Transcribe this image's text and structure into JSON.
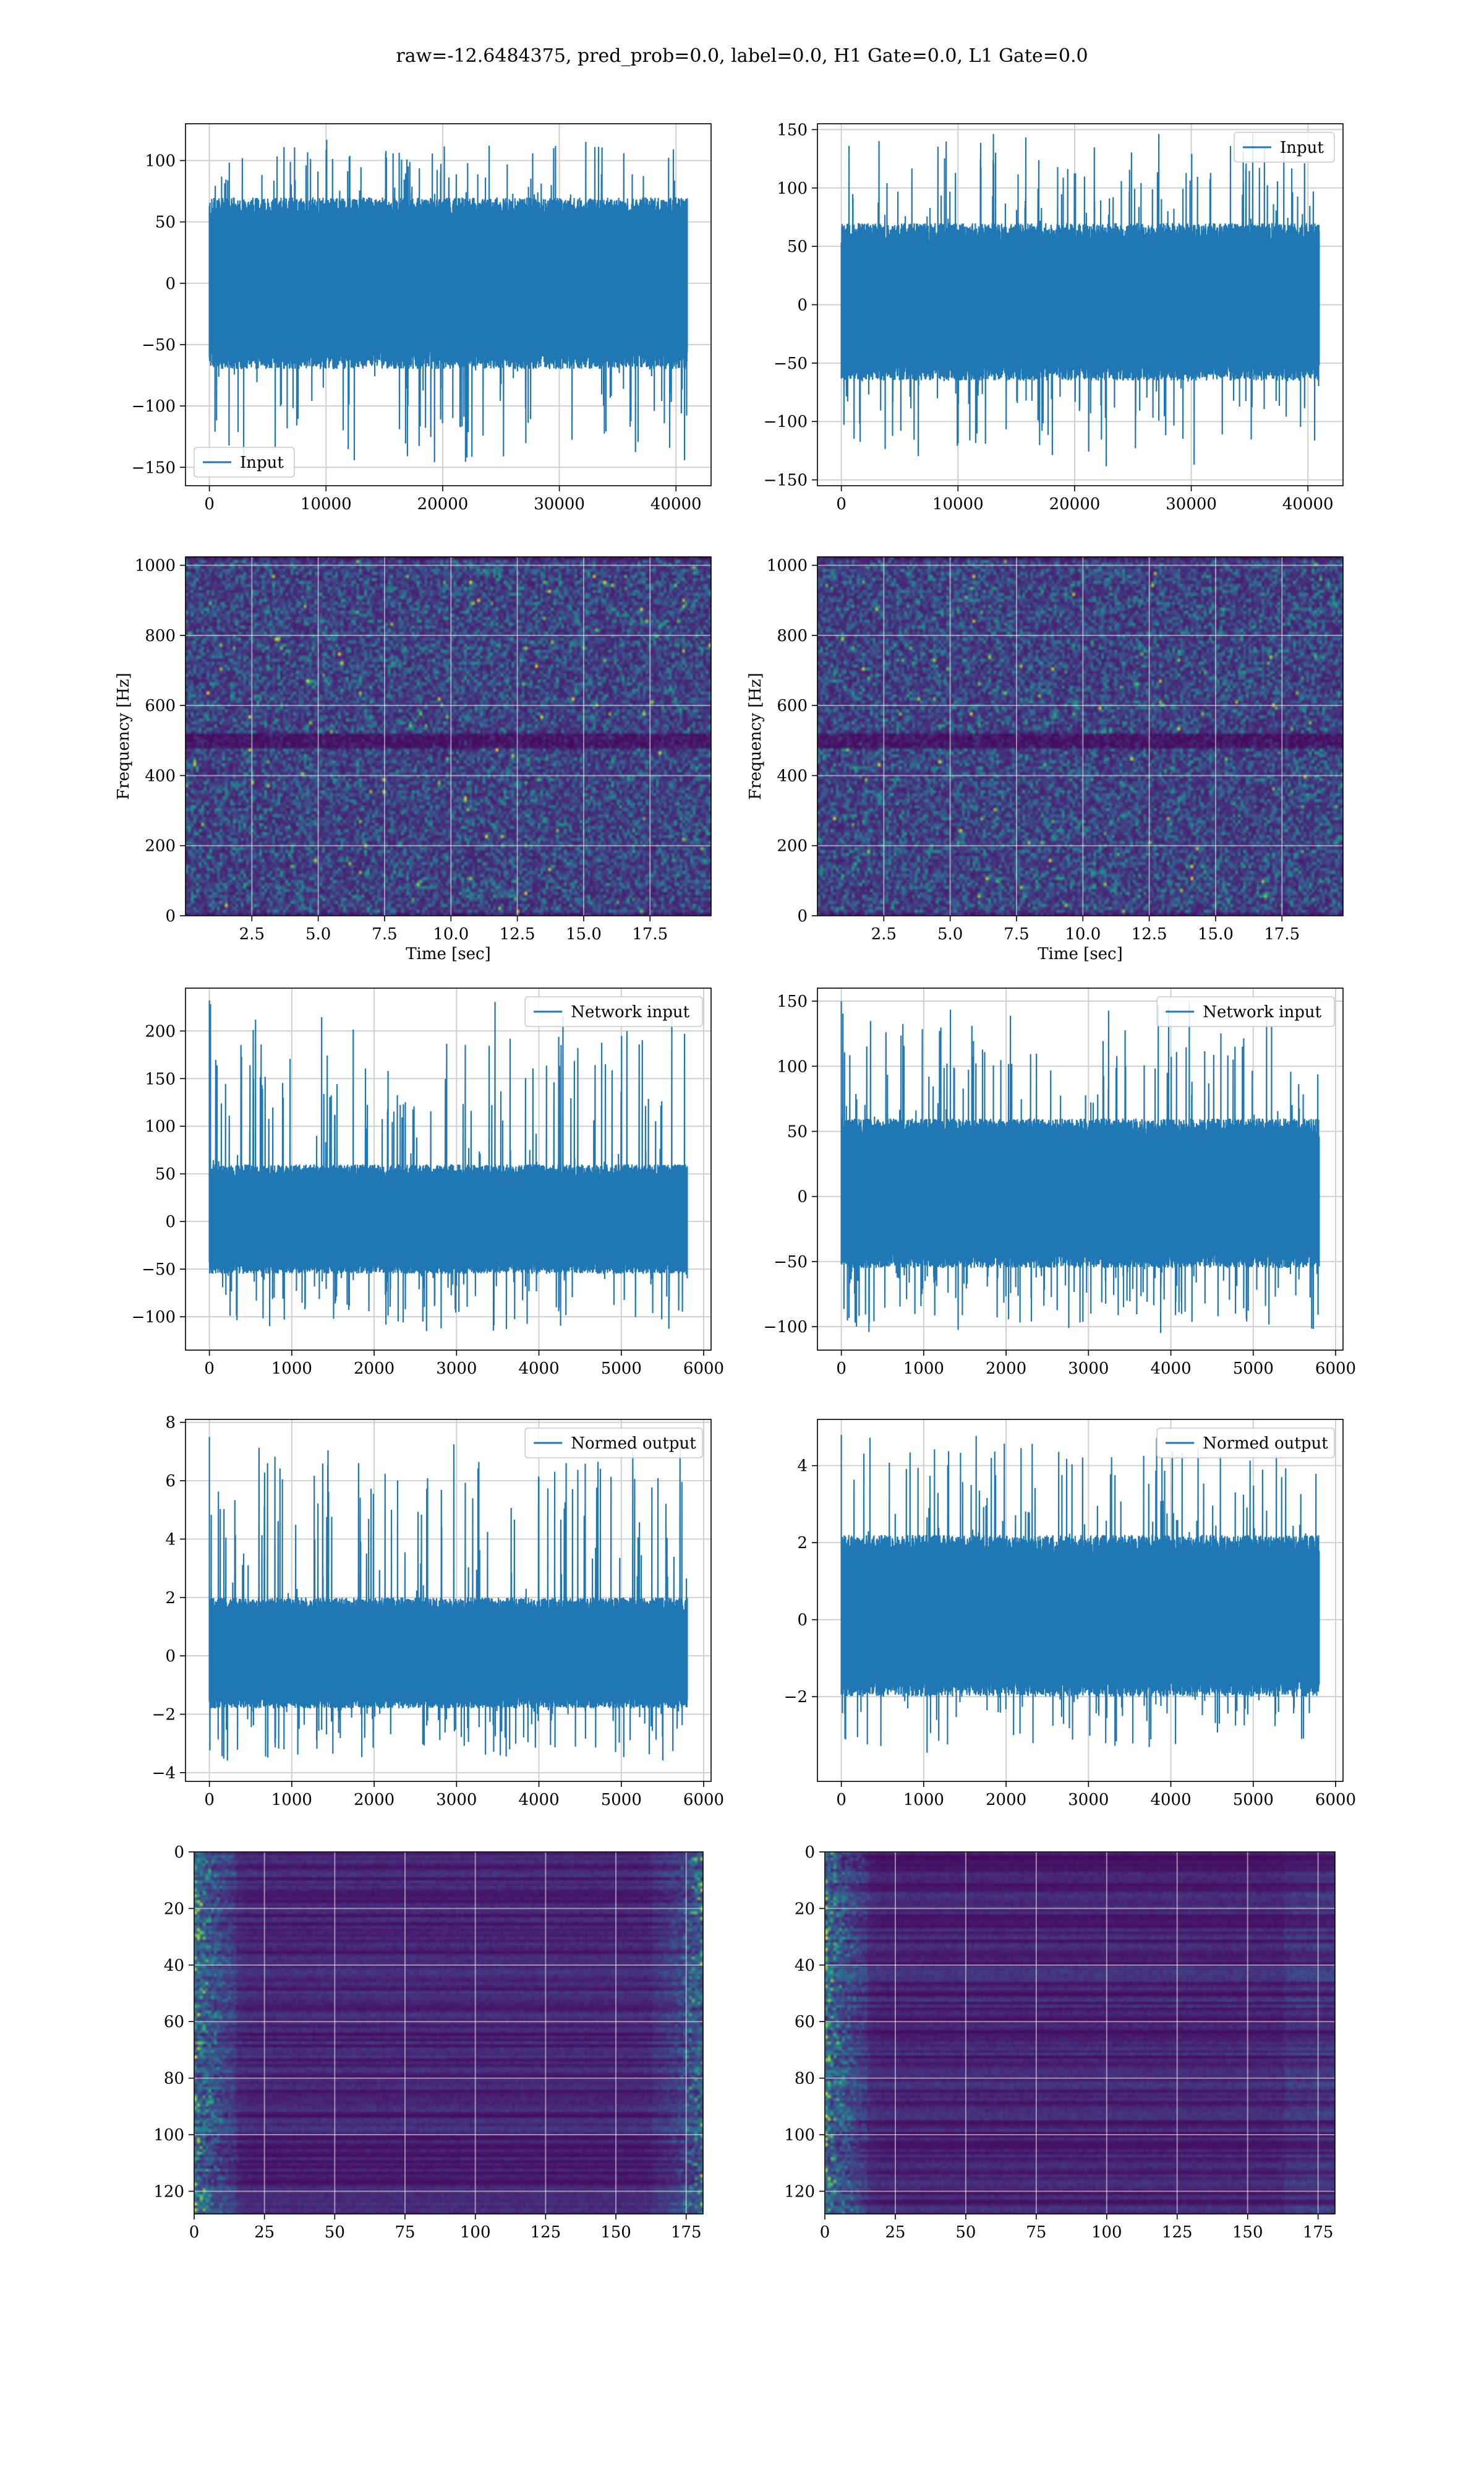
{
  "figure": {
    "suptitle": "raw=-12.6484375, pred_prob=0.0, label=0.0, H1 Gate=0.0, L1 Gate=0.0"
  },
  "colors": {
    "series": "#1f77b4",
    "grid": "#d0d0d0",
    "viridis_dark": "#440154",
    "viridis_mid": "#21918c",
    "viridis_bright": "#fde725"
  },
  "chart_data": [
    {
      "id": "h1-input",
      "type": "line",
      "title": "",
      "xlabel": "",
      "ylabel": "",
      "xlim": [
        -2048,
        43008
      ],
      "ylim": [
        -165,
        130
      ],
      "xticks": [
        0,
        10000,
        20000,
        30000,
        40000
      ],
      "yticks": [
        -150,
        -100,
        -50,
        0,
        50,
        100
      ],
      "grid": true,
      "legend": {
        "position": "lower-left"
      },
      "series": [
        {
          "name": "Input",
          "n_samples": 40960,
          "x_range": [
            0,
            40960
          ],
          "envelope_core": [
            -70,
            70
          ],
          "envelope_extreme": [
            -155,
            120
          ]
        }
      ]
    },
    {
      "id": "l1-input",
      "type": "line",
      "title": "",
      "xlabel": "",
      "ylabel": "",
      "xlim": [
        -2048,
        43008
      ],
      "ylim": [
        -155,
        155
      ],
      "xticks": [
        0,
        10000,
        20000,
        30000,
        40000
      ],
      "yticks": [
        -150,
        -100,
        -50,
        0,
        50,
        100,
        150
      ],
      "grid": true,
      "legend": {
        "position": "upper-right"
      },
      "series": [
        {
          "name": "Input",
          "n_samples": 40960,
          "x_range": [
            0,
            40960
          ],
          "envelope_core": [
            -65,
            70
          ],
          "envelope_extreme": [
            -140,
            148
          ]
        }
      ]
    },
    {
      "id": "h1-spectrogram",
      "type": "heatmap",
      "title": "",
      "xlabel": "Time [sec]",
      "ylabel": "Frequency [Hz]",
      "xlim": [
        0,
        19.8
      ],
      "ylim": [
        0,
        1024
      ],
      "xticks": [
        2.5,
        5.0,
        7.5,
        10.0,
        12.5,
        15.0,
        17.5
      ],
      "xtick_labels": [
        "2.5",
        "5.0",
        "7.5",
        "10.0",
        "12.5",
        "15.0",
        "17.5"
      ],
      "yticks": [
        0,
        200,
        400,
        600,
        800,
        1000
      ],
      "grid": true,
      "colormap": "viridis",
      "dark_band_hz": 500
    },
    {
      "id": "l1-spectrogram",
      "type": "heatmap",
      "title": "",
      "xlabel": "Time [sec]",
      "ylabel": "Frequency [Hz]",
      "xlim": [
        0,
        19.8
      ],
      "ylim": [
        0,
        1024
      ],
      "xticks": [
        2.5,
        5.0,
        7.5,
        10.0,
        12.5,
        15.0,
        17.5
      ],
      "xtick_labels": [
        "2.5",
        "5.0",
        "7.5",
        "10.0",
        "12.5",
        "15.0",
        "17.5"
      ],
      "yticks": [
        0,
        200,
        400,
        600,
        800,
        1000
      ],
      "grid": true,
      "colormap": "viridis",
      "dark_band_hz": 500
    },
    {
      "id": "h1-network-input",
      "type": "line",
      "title": "",
      "xlabel": "",
      "ylabel": "",
      "xlim": [
        -290,
        6090
      ],
      "ylim": [
        -135,
        245
      ],
      "xticks": [
        0,
        1000,
        2000,
        3000,
        4000,
        5000,
        6000
      ],
      "yticks": [
        -100,
        -50,
        0,
        50,
        100,
        150,
        200
      ],
      "grid": true,
      "legend": {
        "position": "upper-right"
      },
      "series": [
        {
          "name": "Network input",
          "n_samples": 5800,
          "x_range": [
            0,
            5800
          ],
          "envelope_core": [
            -55,
            60
          ],
          "envelope_extreme": [
            -120,
            232
          ],
          "initial_spike": 232
        }
      ]
    },
    {
      "id": "l1-network-input",
      "type": "line",
      "title": "",
      "xlabel": "",
      "ylabel": "",
      "xlim": [
        -290,
        6090
      ],
      "ylim": [
        -118,
        160
      ],
      "xticks": [
        0,
        1000,
        2000,
        3000,
        4000,
        5000,
        6000
      ],
      "yticks": [
        -100,
        -50,
        0,
        50,
        100,
        150
      ],
      "grid": true,
      "legend": {
        "position": "upper-right"
      },
      "series": [
        {
          "name": "Network input",
          "n_samples": 5800,
          "x_range": [
            0,
            5800
          ],
          "envelope_core": [
            -55,
            60
          ],
          "envelope_extreme": [
            -105,
            150
          ],
          "initial_spike": 150
        }
      ]
    },
    {
      "id": "h1-normed-output",
      "type": "line",
      "title": "",
      "xlabel": "",
      "ylabel": "",
      "xlim": [
        -290,
        6090
      ],
      "ylim": [
        -4.3,
        8.1
      ],
      "xticks": [
        0,
        1000,
        2000,
        3000,
        4000,
        5000,
        6000
      ],
      "yticks": [
        -4,
        -2,
        0,
        2,
        4,
        6,
        8
      ],
      "grid": true,
      "legend": {
        "position": "upper-right"
      },
      "series": [
        {
          "name": "Normed output",
          "n_samples": 5800,
          "x_range": [
            0,
            5800
          ],
          "envelope_core": [
            -1.8,
            2.0
          ],
          "envelope_extreme": [
            -3.8,
            7.5
          ],
          "initial_spike": 7.5
        }
      ]
    },
    {
      "id": "l1-normed-output",
      "type": "line",
      "title": "",
      "xlabel": "",
      "ylabel": "",
      "xlim": [
        -290,
        6090
      ],
      "ylim": [
        -4.2,
        5.2
      ],
      "xticks": [
        0,
        1000,
        2000,
        3000,
        4000,
        5000,
        6000
      ],
      "yticks": [
        -2,
        0,
        2,
        4
      ],
      "grid": true,
      "legend": {
        "position": "upper-right"
      },
      "series": [
        {
          "name": "Normed output",
          "n_samples": 5800,
          "x_range": [
            0,
            5800
          ],
          "envelope_core": [
            -2.0,
            2.2
          ],
          "envelope_extreme": [
            -3.5,
            4.8
          ],
          "initial_spike": 4.8
        }
      ]
    },
    {
      "id": "h1-feature-map",
      "type": "heatmap",
      "title": "",
      "xlabel": "",
      "ylabel": "",
      "xlim": [
        0,
        181
      ],
      "ylim": [
        128,
        0
      ],
      "xticks": [
        0,
        25,
        50,
        75,
        100,
        125,
        150,
        175
      ],
      "yticks": [
        0,
        20,
        40,
        60,
        80,
        100,
        120
      ],
      "grid": true,
      "colormap": "viridis",
      "n_rows": 128,
      "n_cols": 181,
      "bright_edges": [
        "left",
        "right"
      ]
    },
    {
      "id": "l1-feature-map",
      "type": "heatmap",
      "title": "",
      "xlabel": "",
      "ylabel": "",
      "xlim": [
        0,
        181
      ],
      "ylim": [
        128,
        0
      ],
      "xticks": [
        0,
        25,
        50,
        75,
        100,
        125,
        150,
        175
      ],
      "yticks": [
        0,
        20,
        40,
        60,
        80,
        100,
        120
      ],
      "grid": true,
      "colormap": "viridis",
      "n_rows": 128,
      "n_cols": 181,
      "bright_edges": [
        "left"
      ]
    }
  ]
}
